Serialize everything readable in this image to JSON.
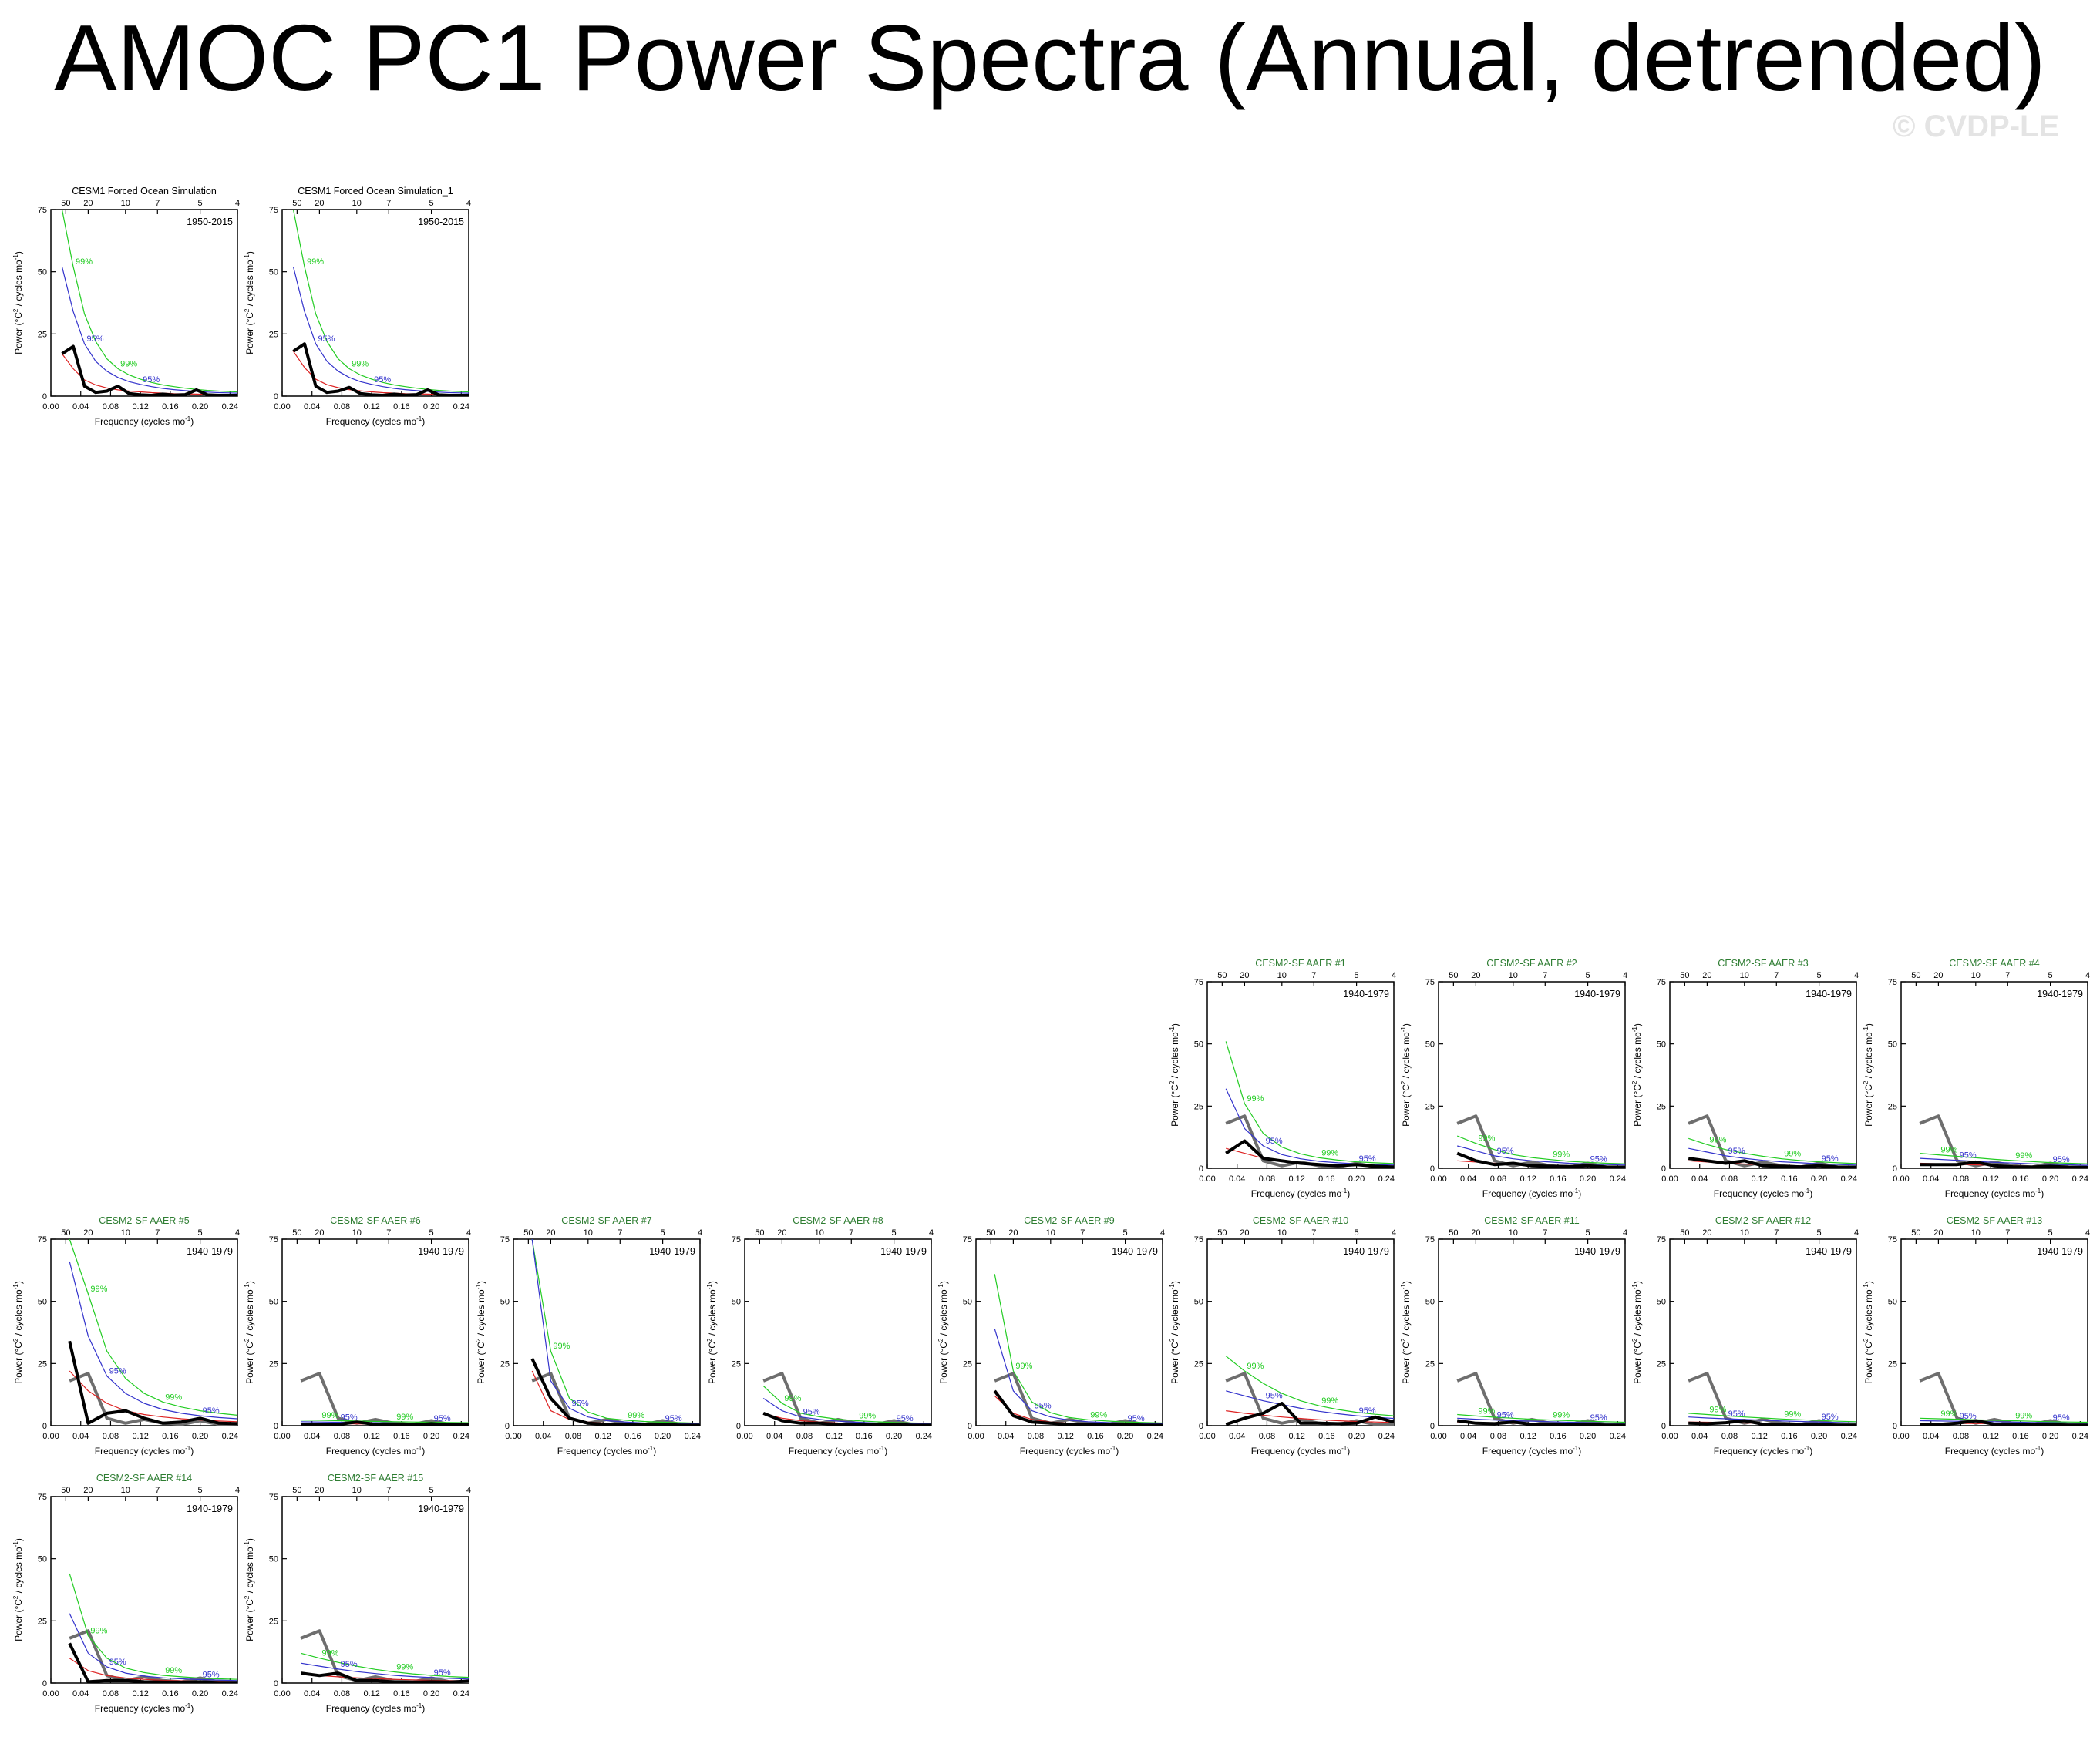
{
  "figure": {
    "title": "AMOC PC1 Power Spectra (Annual, detrended)",
    "watermark": "© CVDP-LE"
  },
  "colors": {
    "spectrum": "#000000",
    "red_noise": "#dd2222",
    "ci95": "#3333cc",
    "ci99": "#22cc22",
    "observations": "#6e6e6e",
    "title_model": "#000000",
    "title_ensemble": "#2e7d32"
  },
  "axes": {
    "xlabel": "Frequency (cycles mo",
    "xlabel_sup": "-1",
    "xlabel_close": ")",
    "ylabel": "Power (°C",
    "ylabel_sup1": "2",
    "ylabel_mid": " / cycles mo",
    "ylabel_sup2": "-1",
    "ylabel_close": ")",
    "xlim": [
      0,
      0.25
    ],
    "ylim": [
      0,
      75
    ],
    "x_ticks": [
      "0.00",
      "0.04",
      "0.08",
      "0.12",
      "0.16",
      "0.20",
      "0.24"
    ],
    "x_tick_values": [
      0,
      0.04,
      0.08,
      0.12,
      0.16,
      0.2,
      0.24
    ],
    "y_ticks": [
      "0",
      "25",
      "50",
      "75"
    ],
    "y_tick_values": [
      0,
      25,
      50,
      75
    ],
    "period_ticks": [
      "50",
      "20",
      "10",
      "7",
      "5",
      "4"
    ],
    "period_tick_values": [
      50,
      20,
      10,
      7,
      5,
      4
    ],
    "ci95_label": "95%",
    "ci99_label": "99%"
  },
  "chart_data": [
    {
      "type": "line",
      "title": "CESM1 Forced Ocean Simulation",
      "title_style": "model",
      "period": "1950-2015",
      "ref": false,
      "x": [
        0.015,
        0.03,
        0.045,
        0.06,
        0.075,
        0.09,
        0.105,
        0.12,
        0.135,
        0.15,
        0.165,
        0.18,
        0.195,
        0.21,
        0.225,
        0.24,
        0.25
      ],
      "spectrum": [
        17,
        20,
        4,
        1.5,
        2,
        4,
        1,
        0.5,
        0.3,
        0.8,
        0.4,
        0.6,
        2.5,
        0.5,
        0.3,
        0.3,
        0.3
      ],
      "red_noise": [
        17,
        11,
        6.5,
        4.5,
        3.3,
        2.5,
        2,
        1.7,
        1.4,
        1.2,
        1,
        0.9,
        0.8,
        0.7,
        0.6,
        0.55,
        0.5
      ],
      "ci95": [
        52,
        34,
        21,
        14,
        10,
        7.5,
        5.8,
        4.7,
        3.8,
        3.1,
        2.6,
        2.2,
        1.9,
        1.6,
        1.4,
        1.3,
        1.2
      ],
      "ci99": [
        78,
        52,
        33,
        22,
        15,
        11,
        8.5,
        6.8,
        5.5,
        4.5,
        3.8,
        3.2,
        2.7,
        2.3,
        2,
        1.8,
        1.7
      ],
      "obs": []
    },
    {
      "type": "line",
      "title": "CESM1 Forced Ocean Simulation_1",
      "title_style": "model",
      "period": "1950-2015",
      "ref": false,
      "x": [
        0.015,
        0.03,
        0.045,
        0.06,
        0.075,
        0.09,
        0.105,
        0.12,
        0.135,
        0.15,
        0.165,
        0.18,
        0.195,
        0.21,
        0.225,
        0.24,
        0.25
      ],
      "spectrum": [
        18,
        21,
        4,
        1.5,
        2,
        3.5,
        1,
        0.5,
        0.3,
        0.8,
        0.4,
        0.6,
        2.5,
        0.5,
        0.3,
        0.3,
        0.3
      ],
      "red_noise": [
        18,
        11.5,
        6.8,
        4.6,
        3.4,
        2.6,
        2.1,
        1.7,
        1.4,
        1.2,
        1,
        0.9,
        0.8,
        0.7,
        0.6,
        0.55,
        0.5
      ],
      "ci95": [
        52,
        34,
        21,
        14,
        10,
        7.5,
        5.8,
        4.7,
        3.8,
        3.1,
        2.6,
        2.2,
        1.9,
        1.6,
        1.4,
        1.3,
        1.2
      ],
      "ci99": [
        78,
        52,
        33,
        22,
        15,
        11,
        8.5,
        6.8,
        5.5,
        4.5,
        3.8,
        3.2,
        2.7,
        2.3,
        2,
        1.8,
        1.7
      ],
      "obs": []
    },
    {
      "type": "line",
      "title": "CESM2-SF AAER #1",
      "title_style": "ensemble",
      "period": "1940-1979",
      "ref": true,
      "x": [
        0.025,
        0.05,
        0.075,
        0.1,
        0.125,
        0.15,
        0.175,
        0.2,
        0.225,
        0.25
      ],
      "spectrum": [
        6,
        11,
        4,
        3,
        2,
        1.5,
        1,
        1.5,
        0.8,
        0.5
      ],
      "red_noise": [
        8,
        6,
        4,
        3,
        2.3,
        1.8,
        1.5,
        1.2,
        1,
        0.9
      ],
      "ci95": [
        32,
        16,
        9,
        5.5,
        3.8,
        2.8,
        2.2,
        1.8,
        1.5,
        1.3
      ],
      "ci99": [
        51,
        26,
        14,
        8.5,
        5.8,
        4.2,
        3.3,
        2.6,
        2.2,
        1.9
      ],
      "obs": [
        18,
        21,
        3,
        1,
        2.5,
        1,
        0.5,
        2,
        0.5,
        0.5
      ]
    },
    {
      "type": "line",
      "title": "CESM2-SF AAER #2",
      "title_style": "ensemble",
      "period": "1940-1979",
      "ref": true,
      "x": [
        0.025,
        0.05,
        0.075,
        0.1,
        0.125,
        0.15,
        0.175,
        0.2,
        0.225,
        0.25
      ],
      "spectrum": [
        6,
        3,
        1.5,
        2,
        1,
        0.8,
        0.7,
        1,
        0.5,
        0.4
      ],
      "red_noise": [
        3,
        2.5,
        2,
        1.6,
        1.3,
        1.1,
        1,
        0.9,
        0.8,
        0.7
      ],
      "ci95": [
        9,
        7,
        5,
        3.8,
        3,
        2.5,
        2,
        1.7,
        1.5,
        1.3
      ],
      "ci99": [
        13,
        10,
        7.5,
        5.5,
        4.3,
        3.5,
        2.8,
        2.4,
        2,
        1.8
      ],
      "obs": [
        18,
        21,
        3,
        1,
        2.5,
        1,
        0.5,
        2,
        0.5,
        0.5
      ]
    },
    {
      "type": "line",
      "title": "CESM2-SF AAER #3",
      "title_style": "ensemble",
      "period": "1940-1979",
      "ref": true,
      "x": [
        0.025,
        0.05,
        0.075,
        0.1,
        0.125,
        0.15,
        0.175,
        0.2,
        0.225,
        0.25
      ],
      "spectrum": [
        4,
        3,
        2,
        3,
        1,
        0.8,
        0.6,
        1,
        0.5,
        0.4
      ],
      "red_noise": [
        3,
        2.5,
        2,
        1.7,
        1.4,
        1.2,
        1,
        0.9,
        0.8,
        0.7
      ],
      "ci95": [
        8,
        6.5,
        5,
        4,
        3.2,
        2.6,
        2.2,
        1.8,
        1.5,
        1.3
      ],
      "ci99": [
        12,
        9.5,
        7.5,
        6,
        4.8,
        3.8,
        3.1,
        2.6,
        2.2,
        1.9
      ],
      "obs": [
        18,
        21,
        3,
        1,
        2.5,
        1,
        0.5,
        2,
        0.5,
        0.5
      ]
    },
    {
      "type": "line",
      "title": "CESM2-SF AAER #4",
      "title_style": "ensemble",
      "period": "1940-1979",
      "ref": true,
      "x": [
        0.025,
        0.05,
        0.075,
        0.1,
        0.125,
        0.15,
        0.175,
        0.2,
        0.225,
        0.25
      ],
      "spectrum": [
        1.5,
        1.5,
        1.5,
        2.5,
        1,
        0.6,
        0.5,
        0.8,
        0.4,
        0.3
      ],
      "red_noise": [
        2,
        1.8,
        1.6,
        1.4,
        1.2,
        1,
        0.9,
        0.8,
        0.7,
        0.6
      ],
      "ci95": [
        4,
        3.6,
        3.2,
        2.8,
        2.4,
        2.1,
        1.8,
        1.6,
        1.4,
        1.2
      ],
      "ci99": [
        6,
        5.4,
        4.8,
        4.2,
        3.6,
        3.1,
        2.7,
        2.3,
        2,
        1.8
      ],
      "obs": [
        18,
        21,
        3,
        1,
        2.5,
        1,
        0.5,
        2,
        0.5,
        0.5
      ]
    },
    {
      "type": "line",
      "title": "CESM2-SF AAER #5",
      "title_style": "ensemble",
      "period": "1940-1979",
      "ref": true,
      "x": [
        0.025,
        0.05,
        0.075,
        0.1,
        0.125,
        0.15,
        0.175,
        0.2,
        0.225,
        0.25
      ],
      "spectrum": [
        34,
        1,
        5,
        6,
        3,
        1,
        1.5,
        3,
        1,
        0.8
      ],
      "red_noise": [
        22,
        14,
        9,
        6,
        4.5,
        3.5,
        2.8,
        2.3,
        1.9,
        1.6
      ],
      "ci95": [
        66,
        36,
        20,
        13,
        9,
        6.5,
        5,
        4,
        3.3,
        2.8
      ],
      "ci99": [
        97,
        53,
        30,
        19,
        13,
        9.5,
        7.5,
        6,
        5,
        4.2
      ],
      "obs": [
        18,
        21,
        3,
        1,
        2.5,
        1,
        0.5,
        2,
        0.5,
        0.5
      ]
    },
    {
      "type": "line",
      "title": "CESM2-SF AAER #6",
      "title_style": "ensemble",
      "period": "1940-1979",
      "ref": true,
      "x": [
        0.025,
        0.05,
        0.075,
        0.1,
        0.125,
        0.15,
        0.175,
        0.2,
        0.225,
        0.25
      ],
      "spectrum": [
        0.5,
        0.5,
        0.5,
        1.5,
        0.5,
        0.4,
        0.3,
        0.8,
        0.3,
        0.3
      ],
      "red_noise": [
        0.8,
        0.8,
        0.7,
        0.7,
        0.6,
        0.6,
        0.5,
        0.5,
        0.5,
        0.4
      ],
      "ci95": [
        1.6,
        1.5,
        1.4,
        1.3,
        1.2,
        1.1,
        1,
        0.9,
        0.9,
        0.8
      ],
      "ci99": [
        2.3,
        2.2,
        2,
        1.9,
        1.7,
        1.6,
        1.5,
        1.4,
        1.3,
        1.2
      ],
      "obs": [
        18,
        21,
        3,
        1,
        2.5,
        1,
        0.5,
        2,
        0.5,
        0.5
      ]
    },
    {
      "type": "line",
      "title": "CESM2-SF AAER #7",
      "title_style": "ensemble",
      "period": "1940-1979",
      "ref": true,
      "x": [
        0.025,
        0.05,
        0.075,
        0.1,
        0.125,
        0.15,
        0.175,
        0.2,
        0.225,
        0.25
      ],
      "spectrum": [
        27,
        11,
        3,
        1,
        0.5,
        0.4,
        0.3,
        0.5,
        0.2,
        0.2
      ],
      "red_noise": [
        22,
        6,
        2.5,
        1.5,
        1,
        0.7,
        0.5,
        0.4,
        0.3,
        0.3
      ],
      "ci95": [
        78,
        18,
        7,
        3.5,
        2,
        1.5,
        1.1,
        0.9,
        0.8,
        0.7
      ],
      "ci99": [
        118,
        30,
        11,
        5.5,
        3,
        2.2,
        1.7,
        1.4,
        1.2,
        1
      ],
      "obs": [
        18,
        21,
        3,
        1,
        2.5,
        1,
        0.5,
        2,
        0.5,
        0.5
      ]
    },
    {
      "type": "line",
      "title": "CESM2-SF AAER #8",
      "title_style": "ensemble",
      "period": "1940-1979",
      "ref": true,
      "x": [
        0.025,
        0.05,
        0.075,
        0.1,
        0.125,
        0.15,
        0.175,
        0.2,
        0.225,
        0.25
      ],
      "spectrum": [
        5,
        2,
        1,
        1,
        0.5,
        0.4,
        0.3,
        0.5,
        0.2,
        0.2
      ],
      "red_noise": [
        5,
        3,
        2,
        1.5,
        1.1,
        0.9,
        0.7,
        0.6,
        0.5,
        0.5
      ],
      "ci95": [
        11,
        6,
        3.5,
        2.5,
        1.8,
        1.4,
        1.1,
        0.9,
        0.8,
        0.7
      ],
      "ci99": [
        16,
        9,
        5,
        3.6,
        2.6,
        2,
        1.6,
        1.3,
        1.1,
        1
      ],
      "obs": [
        18,
        21,
        3,
        1,
        2.5,
        1,
        0.5,
        2,
        0.5,
        0.5
      ]
    },
    {
      "type": "line",
      "title": "CESM2-SF AAER #9",
      "title_style": "ensemble",
      "period": "1940-1979",
      "ref": true,
      "x": [
        0.025,
        0.05,
        0.075,
        0.1,
        0.125,
        0.15,
        0.175,
        0.2,
        0.225,
        0.25
      ],
      "spectrum": [
        14,
        4,
        1.5,
        1,
        0.5,
        0.4,
        0.3,
        0.5,
        0.2,
        0.2
      ],
      "red_noise": [
        12,
        5,
        2.5,
        1.5,
        1,
        0.8,
        0.6,
        0.5,
        0.4,
        0.4
      ],
      "ci95": [
        39,
        14,
        6,
        3.5,
        2.2,
        1.6,
        1.3,
        1,
        0.9,
        0.8
      ],
      "ci99": [
        61,
        22,
        9.5,
        5.2,
        3.3,
        2.4,
        1.9,
        1.5,
        1.3,
        1.1
      ],
      "obs": [
        18,
        21,
        3,
        1,
        2.5,
        1,
        0.5,
        2,
        0.5,
        0.5
      ]
    },
    {
      "type": "line",
      "title": "CESM2-SF AAER #10",
      "title_style": "ensemble",
      "period": "1940-1979",
      "ref": true,
      "x": [
        0.025,
        0.05,
        0.075,
        0.1,
        0.125,
        0.15,
        0.175,
        0.2,
        0.225,
        0.25
      ],
      "spectrum": [
        0.5,
        3,
        5,
        9,
        1,
        1,
        0.8,
        1,
        3.5,
        1.5
      ],
      "red_noise": [
        6,
        5,
        4.2,
        3.5,
        2.9,
        2.4,
        2,
        1.7,
        1.5,
        1.3
      ],
      "ci95": [
        14,
        12,
        10,
        8.5,
        7,
        5.8,
        4.8,
        4,
        3.4,
        2.9
      ],
      "ci99": [
        28,
        22,
        17,
        13,
        10,
        8,
        6.5,
        5.4,
        4.6,
        4
      ],
      "obs": [
        18,
        21,
        3,
        1,
        2.5,
        1,
        0.5,
        2,
        0.5,
        0.5
      ]
    },
    {
      "type": "line",
      "title": "CESM2-SF AAER #11",
      "title_style": "ensemble",
      "period": "1940-1979",
      "ref": true,
      "x": [
        0.025,
        0.05,
        0.075,
        0.1,
        0.125,
        0.15,
        0.175,
        0.2,
        0.225,
        0.25
      ],
      "spectrum": [
        2,
        1,
        0.8,
        1.5,
        0.5,
        0.4,
        0.3,
        0.5,
        0.2,
        0.2
      ],
      "red_noise": [
        1.5,
        1.3,
        1.1,
        1,
        0.9,
        0.8,
        0.7,
        0.6,
        0.5,
        0.5
      ],
      "ci95": [
        3,
        2.6,
        2.3,
        2,
        1.8,
        1.6,
        1.4,
        1.2,
        1.1,
        1
      ],
      "ci99": [
        4.5,
        3.9,
        3.4,
        3,
        2.6,
        2.3,
        2,
        1.8,
        1.6,
        1.4
      ],
      "obs": [
        18,
        21,
        3,
        1,
        2.5,
        1,
        0.5,
        2,
        0.5,
        0.5
      ]
    },
    {
      "type": "line",
      "title": "CESM2-SF AAER #12",
      "title_style": "ensemble",
      "period": "1940-1979",
      "ref": true,
      "x": [
        0.025,
        0.05,
        0.075,
        0.1,
        0.125,
        0.15,
        0.175,
        0.2,
        0.225,
        0.25
      ],
      "spectrum": [
        1,
        0.8,
        1.2,
        2,
        0.6,
        0.4,
        0.3,
        0.5,
        0.2,
        0.2
      ],
      "red_noise": [
        1.5,
        1.4,
        1.3,
        1.1,
        1,
        0.9,
        0.8,
        0.7,
        0.6,
        0.5
      ],
      "ci95": [
        3.5,
        3.1,
        2.8,
        2.5,
        2.2,
        1.9,
        1.7,
        1.5,
        1.3,
        1.1
      ],
      "ci99": [
        5,
        4.5,
        4,
        3.5,
        3.1,
        2.7,
        2.4,
        2.1,
        1.8,
        1.6
      ],
      "obs": [
        18,
        21,
        3,
        1,
        2.5,
        1,
        0.5,
        2,
        0.5,
        0.5
      ]
    },
    {
      "type": "line",
      "title": "CESM2-SF AAER #13",
      "title_style": "ensemble",
      "period": "1940-1979",
      "ref": true,
      "x": [
        0.025,
        0.05,
        0.075,
        0.1,
        0.125,
        0.15,
        0.175,
        0.2,
        0.225,
        0.25
      ],
      "spectrum": [
        0.5,
        0.5,
        1,
        2,
        0.6,
        0.4,
        0.3,
        0.5,
        0.2,
        0.2
      ],
      "red_noise": [
        1,
        1,
        0.9,
        0.9,
        0.8,
        0.8,
        0.7,
        0.6,
        0.6,
        0.5
      ],
      "ci95": [
        2,
        1.9,
        1.8,
        1.7,
        1.6,
        1.5,
        1.3,
        1.2,
        1.1,
        1
      ],
      "ci99": [
        3,
        2.8,
        2.6,
        2.4,
        2.2,
        2,
        1.8,
        1.6,
        1.5,
        1.4
      ],
      "obs": [
        18,
        21,
        3,
        1,
        2.5,
        1,
        0.5,
        2,
        0.5,
        0.5
      ]
    },
    {
      "type": "line",
      "title": "CESM2-SF AAER #14",
      "title_style": "ensemble",
      "period": "1940-1979",
      "ref": true,
      "x": [
        0.025,
        0.05,
        0.075,
        0.1,
        0.125,
        0.15,
        0.175,
        0.2,
        0.225,
        0.25
      ],
      "spectrum": [
        16,
        0.5,
        1,
        1,
        0.5,
        0.4,
        0.3,
        0.5,
        0.2,
        0.2
      ],
      "red_noise": [
        10,
        5,
        3,
        2,
        1.5,
        1.1,
        0.9,
        0.8,
        0.7,
        0.6
      ],
      "ci95": [
        28,
        12,
        6.5,
        4,
        2.8,
        2.1,
        1.7,
        1.4,
        1.2,
        1
      ],
      "ci99": [
        44,
        19,
        10,
        6,
        4.2,
        3.1,
        2.5,
        2,
        1.7,
        1.5
      ],
      "obs": [
        18,
        21,
        3,
        1,
        2.5,
        1,
        0.5,
        2,
        0.5,
        0.5
      ]
    },
    {
      "type": "line",
      "title": "CESM2-SF AAER #15",
      "title_style": "ensemble",
      "period": "1940-1979",
      "ref": true,
      "x": [
        0.025,
        0.05,
        0.075,
        0.1,
        0.125,
        0.15,
        0.175,
        0.2,
        0.225,
        0.25
      ],
      "spectrum": [
        4,
        3,
        4,
        1,
        1,
        0.4,
        0.3,
        0.5,
        0.4,
        0.8
      ],
      "red_noise": [
        3.5,
        3,
        2.5,
        2.1,
        1.8,
        1.5,
        1.3,
        1.1,
        1,
        0.9
      ],
      "ci95": [
        8,
        6.8,
        5.6,
        4.6,
        3.8,
        3.1,
        2.6,
        2.2,
        1.9,
        1.6
      ],
      "ci99": [
        12,
        10,
        8.3,
        6.8,
        5.5,
        4.5,
        3.7,
        3.1,
        2.6,
        2.3
      ],
      "obs": [
        18,
        21,
        3,
        1,
        2.5,
        1,
        0.5,
        2,
        0.5,
        0.5
      ]
    }
  ]
}
